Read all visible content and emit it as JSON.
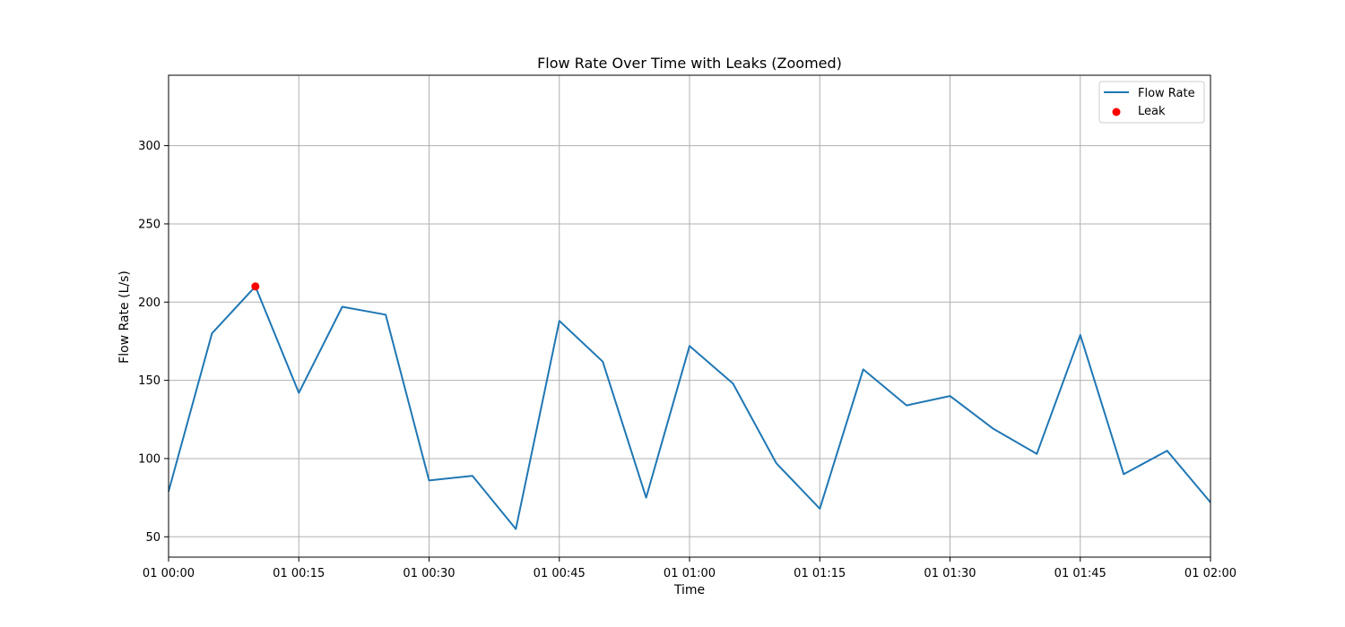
{
  "chart_data": {
    "type": "line",
    "title": "Flow Rate Over Time with Leaks (Zoomed)",
    "xlabel": "Time",
    "ylabel": "Flow Rate (L/s)",
    "xlim": [
      "01 00:00",
      "01 02:00"
    ],
    "ylim": [
      37,
      345
    ],
    "grid": true,
    "legend_position": "top-right",
    "x_ticks": [
      "01 00:00",
      "01 00:15",
      "01 00:30",
      "01 00:45",
      "01 01:00",
      "01 01:15",
      "01 01:30",
      "01 01:45",
      "01 02:00"
    ],
    "y_ticks": [
      50,
      100,
      150,
      200,
      250,
      300
    ],
    "x": [
      "01 00:00",
      "01 00:05",
      "01 00:10",
      "01 00:15",
      "01 00:20",
      "01 00:25",
      "01 00:30",
      "01 00:35",
      "01 00:40",
      "01 00:45",
      "01 00:50",
      "01 00:55",
      "01 01:00",
      "01 01:05",
      "01 01:10",
      "01 01:15",
      "01 01:20",
      "01 01:25",
      "01 01:30",
      "01 01:35",
      "01 01:40",
      "01 01:45",
      "01 01:50",
      "01 01:55",
      "01 02:00"
    ],
    "series": [
      {
        "name": "Flow Rate",
        "color": "#1f77b4",
        "values": [
          79,
          180,
          210,
          142,
          197,
          192,
          86,
          89,
          55,
          188,
          162,
          75,
          172,
          148,
          97,
          68,
          157,
          134,
          140,
          119,
          103,
          179,
          90,
          105,
          72
        ]
      }
    ],
    "scatter_series": [
      {
        "name": "Leak",
        "color": "#ff0000",
        "points": [
          {
            "x": "01 00:10",
            "y": 210
          }
        ]
      }
    ]
  }
}
